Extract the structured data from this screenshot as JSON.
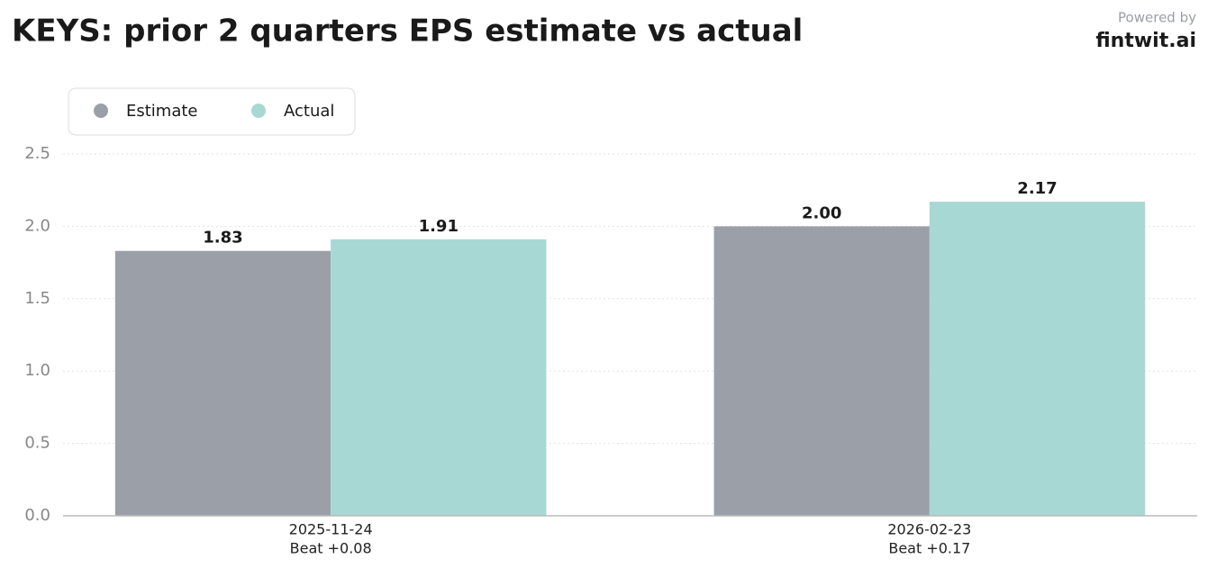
{
  "chart_data": {
    "type": "bar",
    "title": "KEYS: prior 2 quarters EPS estimate vs actual",
    "watermark": {
      "label": "Powered by",
      "brand": "fintwit.ai"
    },
    "categories": [
      "2025-11-24",
      "2026-02-23"
    ],
    "category_sublabels": [
      "Beat +0.08",
      "Beat +0.17"
    ],
    "series": [
      {
        "name": "Estimate",
        "color": "#9ba0a8",
        "values": [
          1.83,
          2.0
        ],
        "value_labels": [
          "1.83",
          "2.00"
        ]
      },
      {
        "name": "Actual",
        "color": "#a8d8d4",
        "values": [
          1.91,
          2.17
        ],
        "value_labels": [
          "1.91",
          "2.17"
        ]
      }
    ],
    "ylim": [
      0,
      2.5
    ],
    "yticks": [
      {
        "value": 0,
        "label": "0.0"
      },
      0.5,
      {
        "value": 1,
        "label": "1.0"
      },
      1.5,
      {
        "value": 2,
        "label": "2.0"
      },
      2.5
    ],
    "grid": true,
    "legend": "upper left"
  }
}
